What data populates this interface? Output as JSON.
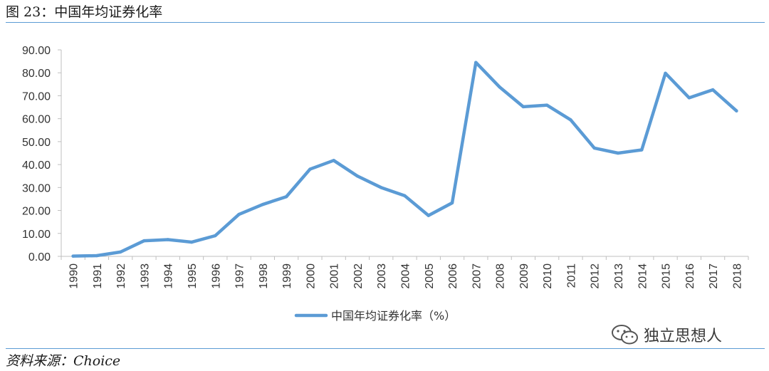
{
  "figure": {
    "title": "图 23：中国年均证券化率",
    "source": "资料来源：Choice",
    "watermark": "独立思想人",
    "accent_color": "#5b9bd5"
  },
  "chart_data": {
    "type": "line",
    "title": "中国年均证券化率",
    "xlabel": "",
    "ylabel": "",
    "ylim": [
      0,
      90
    ],
    "y_ticks": [
      "0.00",
      "10.00",
      "20.00",
      "30.00",
      "40.00",
      "50.00",
      "60.00",
      "70.00",
      "80.00",
      "90.00"
    ],
    "categories": [
      "1990",
      "1991",
      "1992",
      "1993",
      "1994",
      "1995",
      "1996",
      "1997",
      "1998",
      "1999",
      "2000",
      "2001",
      "2002",
      "2003",
      "2004",
      "2005",
      "2006",
      "2007",
      "2008",
      "2009",
      "2010",
      "2011",
      "2012",
      "2013",
      "2014",
      "2015",
      "2016",
      "2017",
      "2018"
    ],
    "series": [
      {
        "name": "中国年均证券化率（%）",
        "color": "#5b9bd5",
        "values": [
          0.1,
          0.3,
          1.9,
          6.8,
          7.3,
          6.2,
          9.0,
          18.3,
          22.6,
          26.0,
          38.0,
          41.8,
          35.0,
          30.0,
          26.4,
          17.8,
          23.3,
          84.5,
          73.8,
          65.2,
          65.9,
          59.5,
          47.2,
          45.0,
          46.4,
          79.8,
          69.1,
          72.6,
          63.4
        ]
      }
    ],
    "legend_position": "bottom-center",
    "grid": false
  }
}
